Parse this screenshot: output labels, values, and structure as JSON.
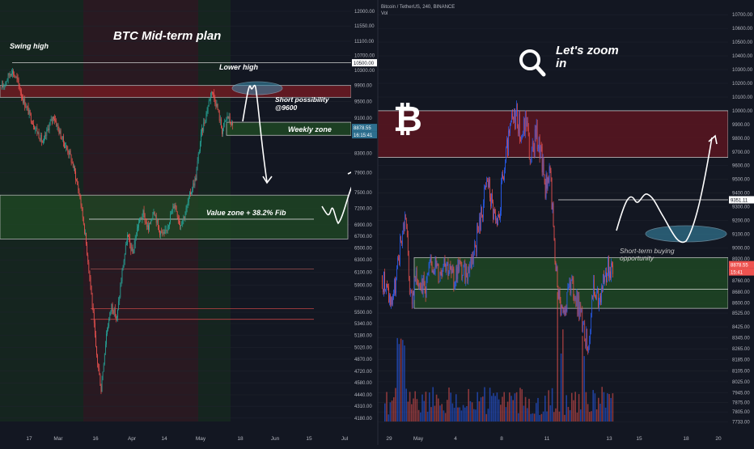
{
  "chart_data": [
    {
      "type": "candlestick",
      "title": "BTC Mid-term plan",
      "x_tick_labels": [
        "17",
        "Mar",
        "16",
        "Apr",
        "14",
        "May",
        "18",
        "Jun",
        "15",
        "Jul"
      ],
      "y_tick_labels": [
        "12000.00",
        "11550.00",
        "11100.00",
        "10700.00",
        "10300.00",
        "9900.00",
        "9500.00",
        "9100.00",
        "8700.00",
        "8300.00",
        "7900.00",
        "7500.00",
        "7200.00",
        "6900.00",
        "6700.00",
        "6500.00",
        "6300.00",
        "6100.00",
        "5900.00",
        "5700.00",
        "5500.00",
        "5340.00",
        "5180.00",
        "5020.00",
        "4870.00",
        "4720.00",
        "4580.00",
        "4440.00",
        "4310.00",
        "4180.00"
      ],
      "ylim": [
        4100,
        12150
      ],
      "y_scale": "log",
      "price_labels": [
        "10500.00",
        "8878.55",
        "16:15:41"
      ],
      "annotations": [
        "Swing high",
        "Lower high",
        "Short possibility @9600",
        "Weekly zone",
        "Value zone + 38.2% Fib"
      ],
      "close_path": [
        9800,
        10050,
        10300,
        10050,
        9600,
        9300,
        9000,
        8750,
        8500,
        8900,
        9150,
        8800,
        8500,
        8300,
        7900,
        7400,
        6700,
        5900,
        5000,
        4500,
        5200,
        5600,
        5400,
        6100,
        6700,
        6400,
        6900,
        7100,
        6800,
        7200,
        6800,
        6700,
        7000,
        7300,
        6900,
        7100,
        7500,
        7800,
        8700,
        9200,
        9800,
        9400,
        8800,
        9150,
        8900
      ],
      "levels": [
        10500,
        9900,
        9600,
        9000,
        8700,
        7450,
        7000,
        6650,
        6150,
        5550,
        5400
      ],
      "colors": {
        "up": "#26a69a",
        "down": "#ef5350",
        "resistance_zone": "#8b1a1a",
        "support_zone": "#1f4a24"
      }
    },
    {
      "type": "candlestick",
      "title": "",
      "symbol_info": "Bitcoin / TetherUS, 240, BINANCE",
      "volume_label": "Vol",
      "x_tick_labels": [
        "29",
        "May",
        "4",
        "8",
        "11",
        "13",
        "15",
        "18",
        "20"
      ],
      "y_tick_labels": [
        "10700.00",
        "10600.00",
        "10500.00",
        "10400.00",
        "10300.00",
        "10200.00",
        "10100.00",
        "10000.00",
        "9900.00",
        "9800.00",
        "9700.00",
        "9600.00",
        "9500.00",
        "9400.00",
        "9300.00",
        "9200.00",
        "9100.00",
        "9000.00",
        "8920.00",
        "8840.00",
        "8760.00",
        "8680.00",
        "8600.00",
        "8525.00",
        "8425.00",
        "8345.00",
        "8265.00",
        "8185.00",
        "8105.00",
        "8025.00",
        "7945.00",
        "7875.00",
        "7805.00",
        "7733.00"
      ],
      "ylim": [
        7700,
        10760
      ],
      "price_labels": [
        "9351.11",
        "8878.55",
        "15:41"
      ],
      "annotations": [
        "Let's zoom in",
        "Short-term buying opportunity"
      ],
      "close_path": [
        8800,
        8700,
        8600,
        8750,
        9050,
        9250,
        8600,
        8750,
        8800,
        8700,
        8850,
        8900,
        8800,
        8950,
        8850,
        8750,
        8900,
        8800,
        8850,
        8950,
        9100,
        9300,
        9500,
        9300,
        9100,
        9450,
        9700,
        9900,
        10000,
        9800,
        9950,
        9600,
        9850,
        9700,
        9450,
        9600,
        8900,
        8600,
        8500,
        8750,
        8650,
        8550,
        8400,
        8300,
        8700,
        8600,
        8780,
        8850,
        8880
      ],
      "levels": [
        10000,
        9660,
        9351,
        8930,
        8700,
        8560
      ],
      "colors": {
        "up": "#2962ff",
        "down": "#ef5350",
        "resistance_zone": "#8b1a1a",
        "support_zone": "#1f4a24"
      }
    }
  ]
}
